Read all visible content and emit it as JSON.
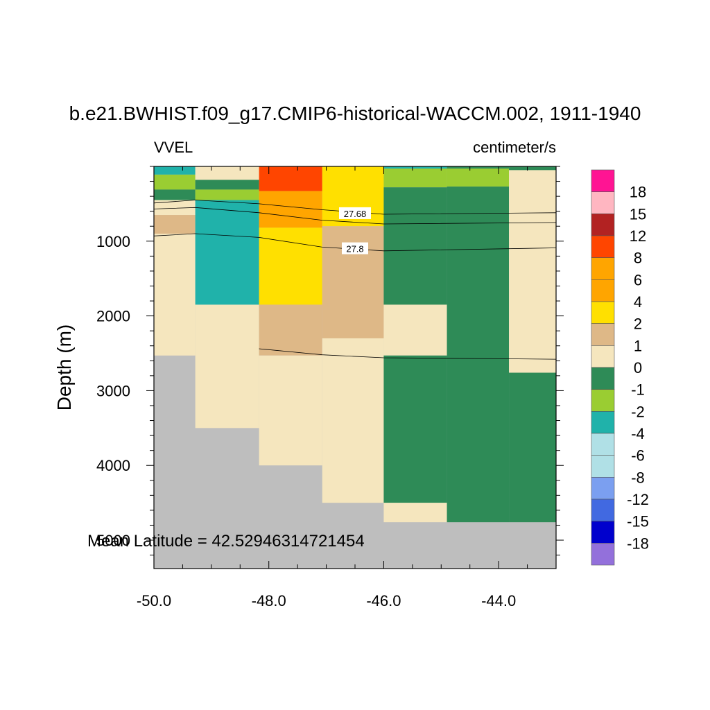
{
  "chart_data": {
    "type": "heatmap",
    "title": "b.e21.BWHIST.f09_g17.CMIP6-historical-WACCM.002, 1911-1940",
    "left_subtitle": "VVEL",
    "right_subtitle": "centimeter/s",
    "ylabel": "Depth (m)",
    "annotation": "Mean Latitude = 42.52946314721454",
    "xlim": [
      -50.0,
      -43.0
    ],
    "ylim": [
      5380,
      0
    ],
    "x_ticks": [
      -50.0,
      -48.0,
      -46.0,
      -44.0
    ],
    "x_tick_labels": [
      "-50.0",
      "-48.0",
      "-46.0",
      "-44.0"
    ],
    "y_ticks": [
      1000,
      2000,
      3000,
      4000,
      5000
    ],
    "y_tick_labels": [
      "1000",
      "2000",
      "3000",
      "4000",
      "5000"
    ],
    "land_color": "#bebebe",
    "colorbar": {
      "labels": [
        "18",
        "15",
        "12",
        "8",
        "6",
        "4",
        "2",
        "1",
        "0",
        "-1",
        "-2",
        "-4",
        "-6",
        "-8",
        "-12",
        "-15",
        "-18"
      ],
      "colors": [
        "#ff1493",
        "#ffb6c1",
        "#b22222",
        "#ff4500",
        "#ffa500",
        "#ffa500",
        "#ffe000",
        "#deb887",
        "#f5e6be",
        "#2e8b57",
        "#9acd32",
        "#20b2aa",
        "#b0e0e6",
        "#b0e0e6",
        "#7b9ff0",
        "#4169e1",
        "#0000cd",
        "#9370db"
      ]
    },
    "cells": [
      {
        "x0": -50.0,
        "x1": -49.28,
        "z0": 0,
        "z1": 110,
        "value": -3,
        "color": "#20b2aa"
      },
      {
        "x0": -50.0,
        "x1": -49.28,
        "z0": 110,
        "z1": 310,
        "value": -1.5,
        "color": "#9acd32"
      },
      {
        "x0": -50.0,
        "x1": -49.28,
        "z0": 310,
        "z1": 450,
        "value": -0.5,
        "color": "#2e8b57"
      },
      {
        "x0": -50.0,
        "x1": -49.28,
        "z0": 450,
        "z1": 650,
        "value": 0.3,
        "color": "#f5e6be"
      },
      {
        "x0": -50.0,
        "x1": -49.28,
        "z0": 650,
        "z1": 900,
        "value": 1.5,
        "color": "#deb887"
      },
      {
        "x0": -50.0,
        "x1": -49.28,
        "z0": 900,
        "z1": 2530,
        "value": 0.3,
        "color": "#f5e6be"
      },
      {
        "x0": -49.28,
        "x1": -48.17,
        "z0": 0,
        "z1": 180,
        "value": 0.3,
        "color": "#f5e6be"
      },
      {
        "x0": -49.28,
        "x1": -48.17,
        "z0": 180,
        "z1": 310,
        "value": -0.5,
        "color": "#2e8b57"
      },
      {
        "x0": -49.28,
        "x1": -48.17,
        "z0": 310,
        "z1": 450,
        "value": -1.5,
        "color": "#9acd32"
      },
      {
        "x0": -49.28,
        "x1": -48.17,
        "z0": 450,
        "z1": 1850,
        "value": -3,
        "color": "#20b2aa"
      },
      {
        "x0": -49.28,
        "x1": -48.17,
        "z0": 1850,
        "z1": 3500,
        "value": 0.3,
        "color": "#f5e6be"
      },
      {
        "x0": -48.17,
        "x1": -47.07,
        "z0": 0,
        "z1": 330,
        "value": 10,
        "color": "#ff4500"
      },
      {
        "x0": -48.17,
        "x1": -47.07,
        "z0": 330,
        "z1": 820,
        "value": 5,
        "color": "#ffa500"
      },
      {
        "x0": -48.17,
        "x1": -47.07,
        "z0": 820,
        "z1": 1850,
        "value": 3,
        "color": "#ffe000"
      },
      {
        "x0": -48.17,
        "x1": -47.07,
        "z0": 1850,
        "z1": 2530,
        "value": 1.5,
        "color": "#deb887"
      },
      {
        "x0": -48.17,
        "x1": -47.07,
        "z0": 2530,
        "z1": 4000,
        "value": 0.3,
        "color": "#f5e6be"
      },
      {
        "x0": -47.07,
        "x1": -46.0,
        "z0": 0,
        "z1": 800,
        "value": 3,
        "color": "#ffe000"
      },
      {
        "x0": -47.07,
        "x1": -46.0,
        "z0": 800,
        "z1": 2300,
        "value": 1.5,
        "color": "#deb887"
      },
      {
        "x0": -47.07,
        "x1": -46.0,
        "z0": 2300,
        "z1": 4500,
        "value": 0.3,
        "color": "#f5e6be"
      },
      {
        "x0": -46.0,
        "x1": -44.9,
        "z0": 0,
        "z1": 30,
        "value": -3,
        "color": "#20b2aa"
      },
      {
        "x0": -46.0,
        "x1": -44.9,
        "z0": 30,
        "z1": 280,
        "value": -1.5,
        "color": "#9acd32"
      },
      {
        "x0": -46.0,
        "x1": -44.9,
        "z0": 280,
        "z1": 1850,
        "value": -0.5,
        "color": "#2e8b57"
      },
      {
        "x0": -46.0,
        "x1": -44.9,
        "z0": 1850,
        "z1": 2530,
        "value": 0.3,
        "color": "#f5e6be"
      },
      {
        "x0": -46.0,
        "x1": -44.9,
        "z0": 2530,
        "z1": 4500,
        "value": -0.5,
        "color": "#2e8b57"
      },
      {
        "x0": -46.0,
        "x1": -44.9,
        "z0": 4500,
        "z1": 4760,
        "value": 0.3,
        "color": "#f5e6be"
      },
      {
        "x0": -44.9,
        "x1": -43.82,
        "z0": 0,
        "z1": 30,
        "value": -0.5,
        "color": "#2e8b57"
      },
      {
        "x0": -44.9,
        "x1": -43.82,
        "z0": 30,
        "z1": 270,
        "value": -1.5,
        "color": "#9acd32"
      },
      {
        "x0": -44.9,
        "x1": -43.82,
        "z0": 270,
        "z1": 4760,
        "value": -0.5,
        "color": "#2e8b57"
      },
      {
        "x0": -43.82,
        "x1": -43.0,
        "z0": 0,
        "z1": 50,
        "value": -0.5,
        "color": "#2e8b57"
      },
      {
        "x0": -43.82,
        "x1": -43.0,
        "z0": 50,
        "z1": 2760,
        "value": 0.3,
        "color": "#f5e6be"
      },
      {
        "x0": -43.82,
        "x1": -43.0,
        "z0": 2760,
        "z1": 4760,
        "value": -0.5,
        "color": "#2e8b57"
      }
    ],
    "contours": [
      {
        "points": [
          [
            -50.0,
            490
          ],
          [
            -49.28,
            450
          ],
          [
            -48.17,
            500
          ],
          [
            -47.07,
            580
          ],
          [
            -46.0,
            640
          ],
          [
            -43.0,
            620
          ]
        ]
      },
      {
        "points": [
          [
            -50.0,
            570
          ],
          [
            -49.28,
            550
          ],
          [
            -48.17,
            620
          ],
          [
            -47.07,
            720
          ],
          [
            -46.0,
            770
          ],
          [
            -43.0,
            750
          ]
        ]
      },
      {
        "points": [
          [
            -50.0,
            930
          ],
          [
            -49.28,
            900
          ],
          [
            -48.17,
            950
          ],
          [
            -47.07,
            1080
          ],
          [
            -46.0,
            1130
          ],
          [
            -43.0,
            1090
          ]
        ]
      },
      {
        "points": [
          [
            -48.17,
            2440
          ],
          [
            -47.07,
            2520
          ],
          [
            -46.0,
            2560
          ],
          [
            -43.0,
            2580
          ]
        ]
      }
    ],
    "contour_labels": [
      {
        "text": "27.68",
        "x": -46.5,
        "z": 630
      },
      {
        "text": "27.8",
        "x": -46.5,
        "z": 1100
      }
    ]
  }
}
